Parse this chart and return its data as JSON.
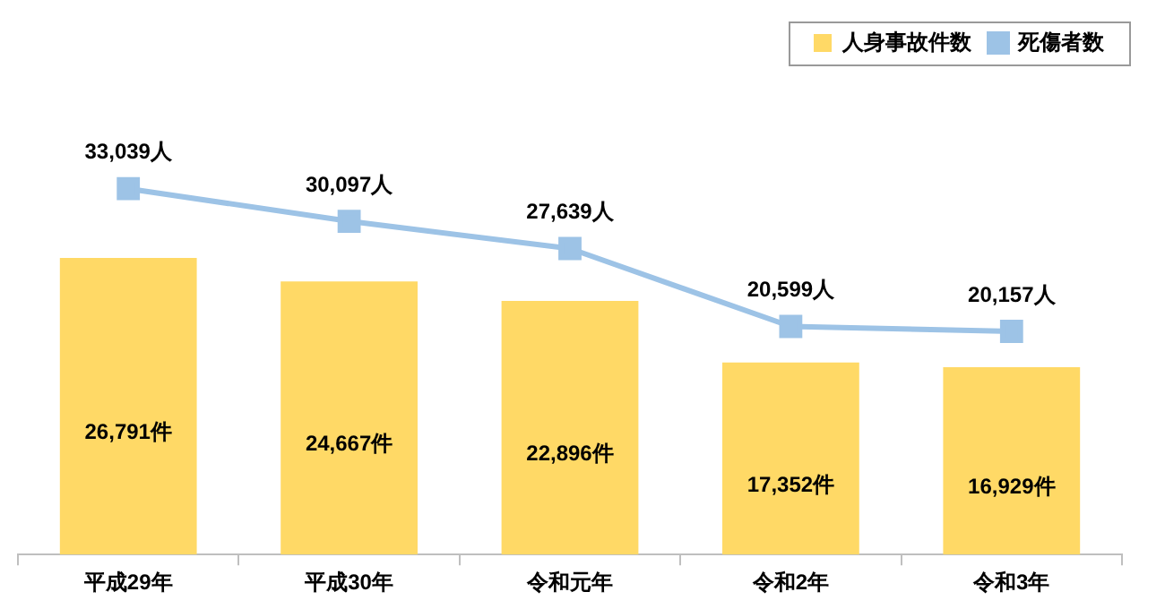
{
  "chart_data": {
    "type": "bar",
    "categories": [
      "平成29年",
      "平成30年",
      "令和元年",
      "令和2年",
      "令和3年"
    ],
    "legend": "top right",
    "grid": false,
    "marker": "square",
    "series": [
      {
        "name": "人身事故件数",
        "color": "#ffd966",
        "values": [
          26791,
          24667,
          22896,
          17352,
          16929
        ],
        "value_labels": [
          "26,791件",
          "24,667件",
          "22,896件",
          "17,352件",
          "16,929件"
        ]
      },
      {
        "name": "死傷者数",
        "type": "line",
        "color": "#9dc3e6",
        "values": [
          33039,
          30097,
          27639,
          20599,
          20157
        ],
        "value_labels": [
          "33,039人",
          "30,097人",
          "27,639人",
          "20,599人",
          "20,157人"
        ]
      }
    ]
  }
}
